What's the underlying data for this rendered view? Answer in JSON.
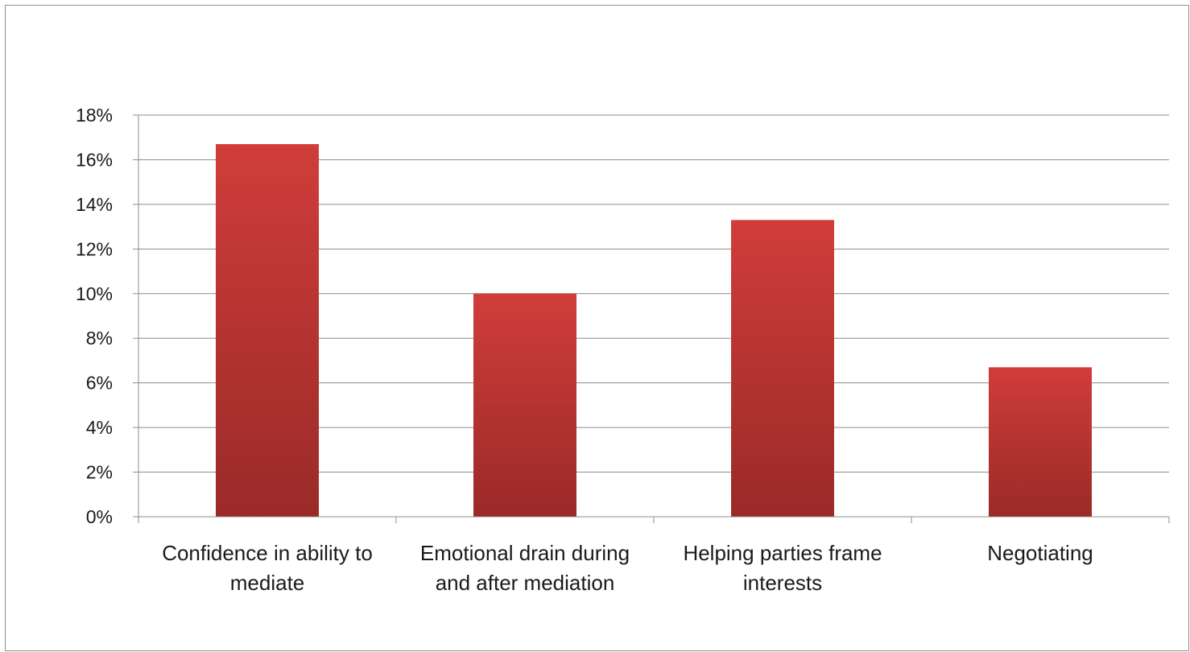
{
  "chart_data": {
    "type": "bar",
    "categories": [
      [
        "Confidence in ability to",
        "mediate"
      ],
      [
        "Emotional drain during",
        "and after mediation"
      ],
      [
        "Helping parties frame",
        "interests"
      ],
      [
        "Negotiating"
      ]
    ],
    "values": [
      16.7,
      10.0,
      13.3,
      6.7
    ],
    "ylim": [
      0,
      18
    ],
    "ytick_step": 2,
    "ytick_labels": [
      "0%",
      "2%",
      "4%",
      "6%",
      "8%",
      "10%",
      "12%",
      "14%",
      "16%",
      "18%"
    ],
    "grid": true,
    "legend": "none",
    "colors": {
      "bar_top": "#d03d3a",
      "bar_bottom": "#9a2a28",
      "grid": "#8c8c8c",
      "axis": "#8c8c8c"
    }
  }
}
